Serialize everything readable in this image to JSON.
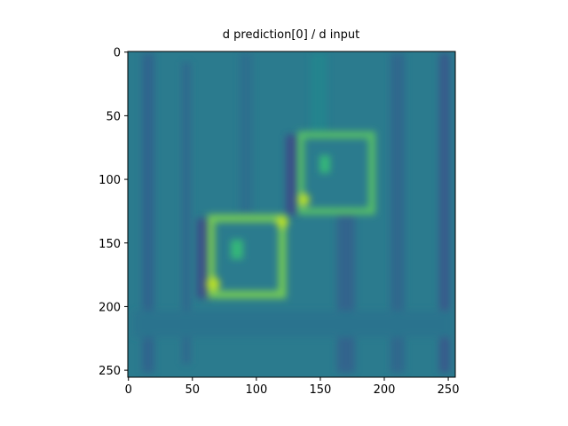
{
  "chart_data": {
    "type": "image",
    "title": "d prediction[0] / d input",
    "xlim": [
      -0.5,
      255.5
    ],
    "ylim": [
      255.5,
      -0.5
    ],
    "xticks": [
      0,
      50,
      100,
      150,
      200,
      250
    ],
    "yticks": [
      0,
      50,
      100,
      150,
      200,
      250
    ]
  }
}
